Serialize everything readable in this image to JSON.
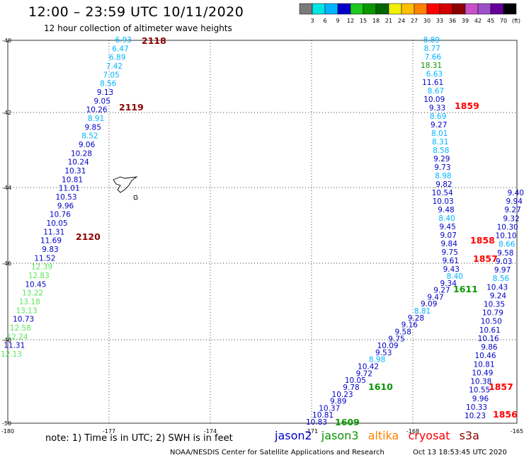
{
  "header": {
    "title": "12:00 – 23:59 UTC 10/11/2020",
    "subtitle": "12 hour collection of altimeter wave heights"
  },
  "colorbar": {
    "colors": [
      "#7a7a7a",
      "#00e6e6",
      "#00b4ff",
      "#0000c8",
      "#1ec81e",
      "#0a9600",
      "#006400",
      "#f0f000",
      "#ffbe00",
      "#ff8200",
      "#ff0000",
      "#d20000",
      "#8c0000",
      "#c850c8",
      "#9b50c8",
      "#640096",
      "#000000"
    ],
    "labels": [
      "3",
      "6",
      "9",
      "12",
      "15",
      "18",
      "21",
      "24",
      "27",
      "30",
      "33",
      "36",
      "39",
      "42",
      "45",
      "70",
      "(ft)"
    ]
  },
  "axes": {
    "lat_labels": [
      "-40",
      "-42",
      "-44",
      "-46",
      "-48",
      "-50"
    ],
    "lon_labels": [
      "-180",
      "-177",
      "-174",
      "-171",
      "-168",
      "-165"
    ]
  },
  "tracks": [
    {
      "tx": [
        {
          "time": "2118",
          "color": "#8c0000"
        },
        {
          "time": "2119",
          "color": "#8c0000"
        },
        {
          "time": "2120",
          "color": "#8c0000"
        }
      ],
      "values": [
        {
          "v": "6.93",
          "c": "#00b4ff"
        },
        {
          "v": "6.47",
          "c": "#00b4ff"
        },
        {
          "v": "6.89",
          "c": "#00b4ff"
        },
        {
          "v": "7.42",
          "c": "#00b4ff"
        },
        {
          "v": "7.05",
          "c": "#00b4ff"
        },
        {
          "v": "8.56",
          "c": "#00b4ff"
        },
        {
          "v": "9.13",
          "c": "#0000c8"
        },
        {
          "v": "9.05",
          "c": "#0000c8"
        },
        {
          "v": "10.26",
          "c": "#0000c8"
        },
        {
          "v": "8.91",
          "c": "#00b4ff"
        },
        {
          "v": "9.85",
          "c": "#0000c8"
        },
        {
          "v": "8.52",
          "c": "#00b4ff"
        },
        {
          "v": "9.06",
          "c": "#0000c8"
        },
        {
          "v": "10.28",
          "c": "#0000c8"
        },
        {
          "v": "10.24",
          "c": "#0000c8"
        },
        {
          "v": "10.31",
          "c": "#0000c8"
        },
        {
          "v": "10.81",
          "c": "#0000c8"
        },
        {
          "v": "11.01",
          "c": "#0000c8"
        },
        {
          "v": "10.53",
          "c": "#0000c8"
        },
        {
          "v": "9.96",
          "c": "#0000c8"
        },
        {
          "v": "10.76",
          "c": "#0000c8"
        },
        {
          "v": "10.05",
          "c": "#0000c8"
        },
        {
          "v": "11.31",
          "c": "#0000c8"
        },
        {
          "v": "11.69",
          "c": "#0000c8"
        },
        {
          "v": "9.83",
          "c": "#0000c8"
        },
        {
          "v": "11.52",
          "c": "#0000c8"
        },
        {
          "v": "12.39",
          "c": "#5ae65a"
        },
        {
          "v": "12.83",
          "c": "#5ae65a"
        },
        {
          "v": "10.45",
          "c": "#0000c8"
        },
        {
          "v": "13.22",
          "c": "#5ae65a"
        },
        {
          "v": "13.18",
          "c": "#5ae65a"
        },
        {
          "v": "13.13",
          "c": "#5ae65a"
        },
        {
          "v": "10.73",
          "c": "#0000c8"
        },
        {
          "v": "12.58",
          "c": "#5ae65a"
        },
        {
          "v": "12.24",
          "c": "#5ae65a"
        },
        {
          "v": "11.31",
          "c": "#0000c8"
        },
        {
          "v": "12.13",
          "c": "#5ae65a"
        }
      ]
    },
    {
      "tx": [
        {
          "time": "1859",
          "color": "#ff0000"
        },
        {
          "time": "1858",
          "color": "#ff0000"
        },
        {
          "time": "1857",
          "color": "#ff0000"
        }
      ],
      "values": [
        {
          "v": "8.89",
          "c": "#00b4ff"
        },
        {
          "v": "8.77",
          "c": "#00b4ff"
        },
        {
          "v": "7.66",
          "c": "#00b4ff"
        },
        {
          "v": "18.31",
          "c": "#0a9600"
        },
        {
          "v": "6.63",
          "c": "#00b4ff"
        },
        {
          "v": "11.61",
          "c": "#0000c8"
        },
        {
          "v": "8.67",
          "c": "#00b4ff"
        },
        {
          "v": "10.09",
          "c": "#0000c8"
        },
        {
          "v": "9.33",
          "c": "#0000c8"
        },
        {
          "v": "8.69",
          "c": "#00b4ff"
        },
        {
          "v": "9.27",
          "c": "#0000c8"
        },
        {
          "v": "8.01",
          "c": "#00b4ff"
        },
        {
          "v": "8.31",
          "c": "#00b4ff"
        },
        {
          "v": "8.58",
          "c": "#00b4ff"
        },
        {
          "v": "9.29",
          "c": "#0000c8"
        },
        {
          "v": "9.73",
          "c": "#0000c8"
        },
        {
          "v": "8.98",
          "c": "#00b4ff"
        },
        {
          "v": "9.82",
          "c": "#0000c8"
        },
        {
          "v": "10.54",
          "c": "#0000c8"
        },
        {
          "v": "10.03",
          "c": "#0000c8"
        },
        {
          "v": "9.48",
          "c": "#0000c8"
        },
        {
          "v": "8.40",
          "c": "#00b4ff"
        },
        {
          "v": "9.45",
          "c": "#0000c8"
        },
        {
          "v": "9.07",
          "c": "#0000c8"
        },
        {
          "v": "9.84",
          "c": "#0000c8"
        },
        {
          "v": "9.75",
          "c": "#0000c8"
        },
        {
          "v": "9.61",
          "c": "#0000c8"
        },
        {
          "v": "9.43",
          "c": "#0000c8"
        }
      ]
    },
    {
      "tx": [
        {
          "time": "1611",
          "color": "#0a9600"
        },
        {
          "time": "1610",
          "color": "#0a9600"
        },
        {
          "time": "1609",
          "color": "#0a9600"
        }
      ],
      "values": [
        {
          "v": "8.40",
          "c": "#00b4ff"
        },
        {
          "v": "9.34",
          "c": "#0000c8"
        },
        {
          "v": "9.27",
          "c": "#0000c8"
        },
        {
          "v": "9.47",
          "c": "#0000c8"
        },
        {
          "v": "9.09",
          "c": "#0000c8"
        },
        {
          "v": "8.81",
          "c": "#00b4ff"
        },
        {
          "v": "9.28",
          "c": "#0000c8"
        },
        {
          "v": "9.16",
          "c": "#0000c8"
        },
        {
          "v": "9.58",
          "c": "#0000c8"
        },
        {
          "v": "9.75",
          "c": "#0000c8"
        },
        {
          "v": "10.09",
          "c": "#0000c8"
        },
        {
          "v": "9.53",
          "c": "#0000c8"
        },
        {
          "v": "8.98",
          "c": "#00b4ff"
        },
        {
          "v": "10.42",
          "c": "#0000c8"
        },
        {
          "v": "9.72",
          "c": "#0000c8"
        },
        {
          "v": "10.05",
          "c": "#0000c8"
        },
        {
          "v": "9.78",
          "c": "#0000c8"
        },
        {
          "v": "10.23",
          "c": "#0000c8"
        },
        {
          "v": "9.89",
          "c": "#0000c8"
        },
        {
          "v": "10.37",
          "c": "#0000c8"
        },
        {
          "v": "10.81",
          "c": "#0000c8"
        },
        {
          "v": "10.83",
          "c": "#0000c8"
        }
      ]
    },
    {
      "tx": [
        {
          "time": "1857",
          "color": "#ff0000"
        },
        {
          "time": "1856",
          "color": "#ff0000"
        }
      ],
      "values": [
        {
          "v": "9.40",
          "c": "#0000c8"
        },
        {
          "v": "9.94",
          "c": "#0000c8"
        },
        {
          "v": "9.27",
          "c": "#0000c8"
        },
        {
          "v": "9.32",
          "c": "#0000c8"
        },
        {
          "v": "10.30",
          "c": "#0000c8"
        },
        {
          "v": "10.10",
          "c": "#0000c8"
        },
        {
          "v": "8.66",
          "c": "#00b4ff"
        },
        {
          "v": "9.58",
          "c": "#0000c8"
        },
        {
          "v": "9.03",
          "c": "#0000c8"
        },
        {
          "v": "9.97",
          "c": "#0000c8"
        },
        {
          "v": "8.56",
          "c": "#00b4ff"
        },
        {
          "v": "10.43",
          "c": "#0000c8"
        },
        {
          "v": "9.24",
          "c": "#0000c8"
        },
        {
          "v": "10.35",
          "c": "#0000c8"
        },
        {
          "v": "10.79",
          "c": "#0000c8"
        },
        {
          "v": "10.50",
          "c": "#0000c8"
        },
        {
          "v": "10.61",
          "c": "#0000c8"
        },
        {
          "v": "10.16",
          "c": "#0000c8"
        },
        {
          "v": "9.86",
          "c": "#0000c8"
        },
        {
          "v": "10.46",
          "c": "#0000c8"
        },
        {
          "v": "10.81",
          "c": "#0000c8"
        },
        {
          "v": "10.49",
          "c": "#0000c8"
        },
        {
          "v": "10.38",
          "c": "#0000c8"
        },
        {
          "v": "10.55",
          "c": "#0000c8"
        },
        {
          "v": "9.96",
          "c": "#0000c8"
        },
        {
          "v": "10.33",
          "c": "#0000c8"
        },
        {
          "v": "10.23",
          "c": "#0000c8"
        }
      ]
    }
  ],
  "footer": {
    "note": "note:  1) Time is in UTC; 2) SWH is in feet",
    "credit": "NOAA/NESDIS Center for Satellite Applications and Research",
    "timestamp": "Oct 13 18:53:45 UTC 2020",
    "legend": [
      {
        "label": "jason2",
        "color": "#0000c8"
      },
      {
        "label": "jason3",
        "color": "#0a9600"
      },
      {
        "label": "altika",
        "color": "#ff8200"
      },
      {
        "label": "cryosat",
        "color": "#ff0000"
      },
      {
        "label": "s3a",
        "color": "#8c0000"
      }
    ]
  }
}
